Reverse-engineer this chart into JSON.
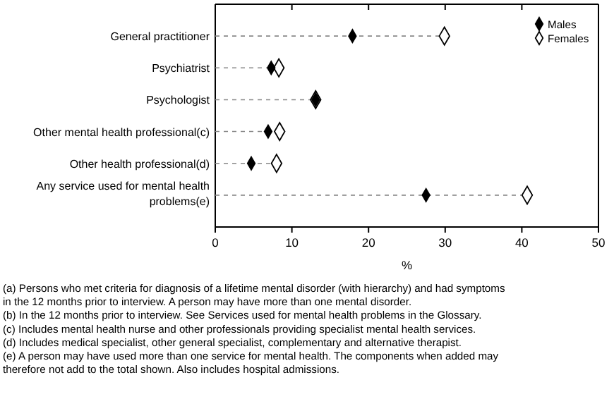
{
  "chart_data": {
    "type": "scatter",
    "orientation": "horizontal",
    "categories": [
      "General practitioner",
      "Psychiatrist",
      "Psychologist",
      "Other mental health professional(c)",
      "Other health professional(d)",
      "Any service used for mental health problems(e)"
    ],
    "series": [
      {
        "name": "Males",
        "color": "#000000",
        "values": [
          17.9,
          7.3,
          13.1,
          6.9,
          4.7,
          27.5
        ]
      },
      {
        "name": "Females",
        "color": "#ffffff",
        "values": [
          29.9,
          8.3,
          13.1,
          8.4,
          8.0,
          40.7
        ]
      }
    ],
    "xlim": [
      0,
      50
    ],
    "xticks": [
      0,
      10,
      20,
      30,
      40,
      50
    ],
    "xlabel": "%",
    "marker": "diamond",
    "legend": "top right",
    "grid": "y",
    "annotations": [
      "(a) Persons who met criteria for diagnosis of a lifetime mental disorder (with hierarchy) and had symptoms in the 12 months prior to interview. A person may have more than one mental disorder.",
      "(b) In the 12 months prior to interview. See Services used for mental health problems in the Glossary.",
      "(c) Includes mental health nurse and other professionals providing specialist mental health services.",
      "(d) Includes medical specialist, other general specialist, complementary and alternative therapist.",
      "(e) A person may have used more than one service for mental health. The components when added may therefore not add to the total shown. Also includes hospital admissions."
    ]
  }
}
